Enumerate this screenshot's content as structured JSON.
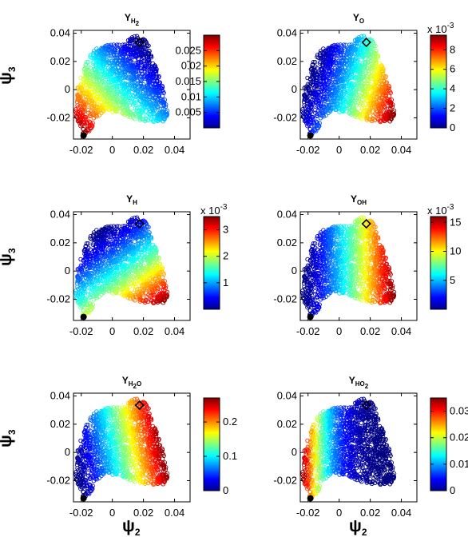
{
  "figure": {
    "x_axis_label": {
      "main": "ψ",
      "sub": "2"
    },
    "y_axis_label": {
      "main": "ψ",
      "sub": "3"
    }
  },
  "chart_data": [
    {
      "type": "scatter",
      "title": {
        "main": "Y",
        "sub": "H",
        "sub2": "2",
        "tail": ""
      },
      "xlim": [
        -0.025,
        0.05
      ],
      "ylim": [
        -0.035,
        0.042
      ],
      "x_ticks": [
        "-0.02",
        "0",
        "0.02",
        "0.04"
      ],
      "y_ticks": [
        "0.04",
        "0.02",
        "0",
        "-0.02"
      ],
      "colorbar": {
        "range": [
          0,
          0.03
        ],
        "ticks": [
          "0.025",
          "0.02",
          "0.015",
          "0.01",
          "0.005"
        ],
        "tick_values": [
          0.025,
          0.02,
          0.015,
          0.01,
          0.005
        ],
        "exponent": ""
      },
      "gradient": {
        "direction": [
          -1,
          -1
        ],
        "peak_region": "lower-left"
      },
      "black_dot": [
        -0.0185,
        -0.0325
      ],
      "diamond": [
        0.0175,
        0.0335
      ]
    },
    {
      "type": "scatter",
      "title": {
        "main": "Y",
        "sub": "O",
        "sub2": "",
        "tail": ""
      },
      "xlim": [
        -0.025,
        0.05
      ],
      "ylim": [
        -0.035,
        0.042
      ],
      "x_ticks": [
        "-0.02",
        "0",
        "0.02",
        "0.04"
      ],
      "y_ticks": [
        "0.04",
        "0.02",
        "0",
        "-0.02"
      ],
      "colorbar": {
        "range": [
          0,
          0.0095
        ],
        "ticks": [
          "8",
          "6",
          "4",
          "2",
          "0"
        ],
        "tick_values": [
          0.008,
          0.006,
          0.004,
          0.002,
          0
        ],
        "exponent": "x 10"
      },
      "gradient": {
        "direction": [
          1,
          -0.35
        ],
        "peak_region": "right"
      },
      "black_dot": [
        -0.0185,
        -0.0325
      ],
      "diamond": [
        0.0175,
        0.0335
      ]
    },
    {
      "type": "scatter",
      "title": {
        "main": "Y",
        "sub": "H",
        "sub2": "",
        "tail": ""
      },
      "xlim": [
        -0.025,
        0.05
      ],
      "ylim": [
        -0.035,
        0.042
      ],
      "x_ticks": [
        "-0.02",
        "0",
        "0.02",
        "0.04"
      ],
      "y_ticks": [
        "0.04",
        "0.02",
        "0",
        "-0.02"
      ],
      "colorbar": {
        "range": [
          0,
          0.0035
        ],
        "ticks": [
          "3",
          "2",
          "1"
        ],
        "tick_values": [
          0.003,
          0.002,
          0.001
        ],
        "exponent": "x 10"
      },
      "gradient": {
        "direction": [
          0.7,
          -1
        ],
        "peak_region": "lower-right"
      },
      "black_dot": [
        -0.0185,
        -0.0325
      ],
      "diamond": [
        0.0175,
        0.0335
      ]
    },
    {
      "type": "scatter",
      "title": {
        "main": "Y",
        "sub": "OH",
        "sub2": "",
        "tail": ""
      },
      "xlim": [
        -0.025,
        0.05
      ],
      "ylim": [
        -0.035,
        0.042
      ],
      "x_ticks": [
        "-0.02",
        "0",
        "0.02",
        "0.04"
      ],
      "y_ticks": [
        "0.04",
        "0.02",
        "0",
        "-0.02"
      ],
      "colorbar": {
        "range": [
          0,
          0.016
        ],
        "ticks": [
          "15",
          "10",
          "5"
        ],
        "tick_values": [
          0.015,
          0.01,
          0.005
        ],
        "exponent": "x 10"
      },
      "gradient": {
        "direction": [
          1,
          0
        ],
        "peak_region": "right"
      },
      "black_dot": [
        -0.0185,
        -0.0325
      ],
      "diamond": [
        0.0175,
        0.0335
      ]
    },
    {
      "type": "scatter",
      "title": {
        "main": "Y",
        "sub": "H",
        "sub2": "2",
        "tail": "O"
      },
      "xlim": [
        -0.025,
        0.05
      ],
      "ylim": [
        -0.035,
        0.042
      ],
      "x_ticks": [
        "-0.02",
        "0",
        "0.02",
        "0.04"
      ],
      "y_ticks": [
        "0.04",
        "0.02",
        "0",
        "-0.02"
      ],
      "colorbar": {
        "range": [
          0,
          0.27
        ],
        "ticks": [
          "0.2",
          "0.1",
          "0"
        ],
        "tick_values": [
          0.2,
          0.1,
          0
        ],
        "exponent": ""
      },
      "gradient": {
        "direction": [
          1,
          0.2
        ],
        "peak_region": "right"
      },
      "black_dot": [
        -0.0185,
        -0.0325
      ],
      "diamond": [
        0.0175,
        0.0335
      ]
    },
    {
      "type": "scatter",
      "title": {
        "main": "Y",
        "sub": "HO",
        "sub2": "2",
        "tail": ""
      },
      "xlim": [
        -0.025,
        0.05
      ],
      "ylim": [
        -0.035,
        0.042
      ],
      "x_ticks": [
        "-0.02",
        "0",
        "0.02",
        "0.04"
      ],
      "y_ticks": [
        "0.04",
        "0.02",
        "0",
        "-0.02"
      ],
      "colorbar": {
        "range": [
          0,
          0.035
        ],
        "ticks": [
          "0.03",
          "0.02",
          "0.01",
          "0"
        ],
        "tick_values": [
          0.03,
          0.02,
          0.01,
          0
        ],
        "exponent": ""
      },
      "gradient": {
        "direction": [
          -1,
          0
        ],
        "peak_region": "left"
      },
      "black_dot": [
        -0.0185,
        -0.0325
      ],
      "diamond": [
        0.0175,
        0.0335
      ]
    }
  ]
}
